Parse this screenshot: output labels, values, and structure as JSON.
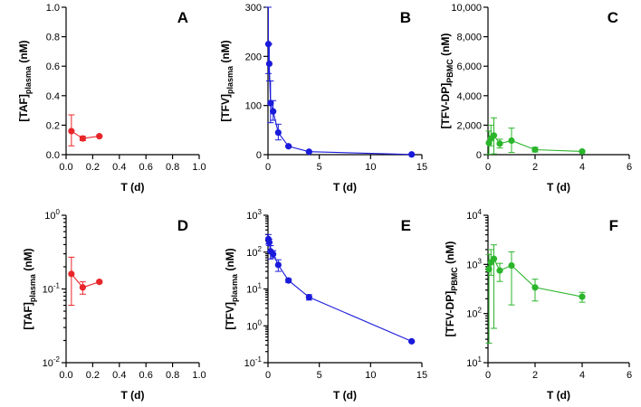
{
  "colors": {
    "red": "#e8262a",
    "blue": "#1a1adb",
    "green": "#2bb52b"
  },
  "chart_data": [
    {
      "panel": "A",
      "type": "line",
      "yscale": "linear",
      "xlabel": "T (d)",
      "ylabel_main": "[TAF]",
      "ylabel_sub": "plasma",
      "ylabel_unit": " (nM)",
      "xlim": [
        0,
        1
      ],
      "ylim": [
        0,
        1
      ],
      "xticks": [
        0,
        0.2,
        0.4,
        0.6,
        0.8,
        1
      ],
      "xtick_labels": [
        "0.0",
        "0.2",
        "0.4",
        "0.6",
        "0.8",
        "1.0"
      ],
      "yticks": [
        0,
        0.2,
        0.4,
        0.6,
        0.8,
        1
      ],
      "ytick_labels": [
        "0.0",
        "0.2",
        "0.4",
        "0.6",
        "0.8",
        "1.0"
      ],
      "color_key": "red",
      "points": [
        {
          "x": 0.04,
          "y": 0.16,
          "lo": 0.06,
          "hi": 0.27
        },
        {
          "x": 0.125,
          "y": 0.11,
          "lo": 0.095,
          "hi": 0.125
        },
        {
          "x": 0.25,
          "y": 0.125,
          "lo": 0.12,
          "hi": 0.13
        }
      ]
    },
    {
      "panel": "B",
      "type": "line",
      "yscale": "linear",
      "xlabel": "T (d)",
      "ylabel_main": "[TFV]",
      "ylabel_sub": "plasma",
      "ylabel_unit": " (nM)",
      "xlim": [
        0,
        15
      ],
      "ylim": [
        0,
        300
      ],
      "xticks": [
        0,
        5,
        10,
        15
      ],
      "xtick_labels": [
        "0",
        "5",
        "10",
        "15"
      ],
      "yticks": [
        0,
        100,
        200,
        300
      ],
      "ytick_labels": [
        "0",
        "100",
        "200",
        "300"
      ],
      "color_key": "blue",
      "points": [
        {
          "x": 0.04,
          "y": 225,
          "lo": 165,
          "hi": 300
        },
        {
          "x": 0.125,
          "y": 185,
          "lo": 150,
          "hi": 225
        },
        {
          "x": 0.25,
          "y": 105,
          "lo": 65,
          "hi": 150
        },
        {
          "x": 0.5,
          "y": 88,
          "lo": 70,
          "hi": 110
        },
        {
          "x": 1,
          "y": 45,
          "lo": 30,
          "hi": 62
        },
        {
          "x": 2,
          "y": 17,
          "lo": 15,
          "hi": 19
        },
        {
          "x": 4,
          "y": 6,
          "lo": 5,
          "hi": 7
        },
        {
          "x": 14,
          "y": 0.4,
          "lo": 0.4,
          "hi": 0.4
        }
      ]
    },
    {
      "panel": "C",
      "type": "line",
      "yscale": "linear",
      "xlabel": "T (d)",
      "ylabel_main": "[TFV-DP]",
      "ylabel_sub": "PBMC",
      "ylabel_unit": " (nM)",
      "xlim": [
        0,
        6
      ],
      "ylim": [
        0,
        10000
      ],
      "xticks": [
        0,
        2,
        4,
        6
      ],
      "xtick_labels": [
        "0",
        "2",
        "4",
        "6"
      ],
      "yticks": [
        0,
        2000,
        4000,
        6000,
        8000,
        10000
      ],
      "ytick_labels": [
        "0",
        "2,000",
        "4,000",
        "6,000",
        "8,000",
        "10,000"
      ],
      "color_key": "green",
      "points": [
        {
          "x": 0.04,
          "y": 800,
          "lo": 25,
          "hi": 1600
        },
        {
          "x": 0.125,
          "y": 1100,
          "lo": 600,
          "hi": 2000
        },
        {
          "x": 0.25,
          "y": 1300,
          "lo": 50,
          "hi": 2500
        },
        {
          "x": 0.5,
          "y": 750,
          "lo": 450,
          "hi": 1050
        },
        {
          "x": 1,
          "y": 950,
          "lo": 150,
          "hi": 1800
        },
        {
          "x": 2,
          "y": 340,
          "lo": 180,
          "hi": 500
        },
        {
          "x": 4,
          "y": 220,
          "lo": 170,
          "hi": 270
        }
      ]
    },
    {
      "panel": "D",
      "type": "line",
      "yscale": "log",
      "xlabel": "T (d)",
      "ylabel_main": "[TAF]",
      "ylabel_sub": "plasma",
      "ylabel_unit": " (nM)",
      "xlim": [
        0,
        1
      ],
      "ylim_exp": [
        -2,
        0
      ],
      "xticks": [
        0,
        0.2,
        0.4,
        0.6,
        0.8,
        1
      ],
      "xtick_labels": [
        "0.0",
        "0.2",
        "0.4",
        "0.6",
        "0.8",
        "1.0"
      ],
      "yticks_exp": [
        -2,
        -1,
        0
      ],
      "ytick_exp_labels": [
        "-2",
        "-1",
        "0"
      ],
      "ytick_base": "10",
      "color_key": "red",
      "points": [
        {
          "x": 0.04,
          "y": 0.16,
          "lo": 0.06,
          "hi": 0.27
        },
        {
          "x": 0.125,
          "y": 0.105,
          "lo": 0.085,
          "hi": 0.125
        },
        {
          "x": 0.25,
          "y": 0.125,
          "lo": 0.12,
          "hi": 0.13
        }
      ]
    },
    {
      "panel": "E",
      "type": "line",
      "yscale": "log",
      "xlabel": "T (d)",
      "ylabel_main": "[TFV]",
      "ylabel_sub": "plasma",
      "ylabel_unit": " (nM)",
      "xlim": [
        0,
        15
      ],
      "ylim_exp": [
        -1,
        3
      ],
      "xticks": [
        0,
        5,
        10,
        15
      ],
      "xtick_labels": [
        "0",
        "5",
        "10",
        "15"
      ],
      "yticks_exp": [
        -1,
        0,
        1,
        2,
        3
      ],
      "ytick_exp_labels": [
        "-1",
        "0",
        "1",
        "2",
        "3"
      ],
      "ytick_base": "10",
      "color_key": "blue",
      "points": [
        {
          "x": 0.04,
          "y": 225,
          "lo": 165,
          "hi": 300
        },
        {
          "x": 0.125,
          "y": 185,
          "lo": 150,
          "hi": 225
        },
        {
          "x": 0.25,
          "y": 105,
          "lo": 65,
          "hi": 150
        },
        {
          "x": 0.5,
          "y": 88,
          "lo": 70,
          "hi": 110
        },
        {
          "x": 1,
          "y": 45,
          "lo": 30,
          "hi": 62
        },
        {
          "x": 2,
          "y": 17,
          "lo": 15,
          "hi": 19
        },
        {
          "x": 4,
          "y": 6,
          "lo": 5,
          "hi": 7
        },
        {
          "x": 14,
          "y": 0.38,
          "lo": 0.36,
          "hi": 0.4
        }
      ]
    },
    {
      "panel": "F",
      "type": "line",
      "yscale": "log",
      "xlabel": "T (d)",
      "ylabel_main": "[TFV-DP]",
      "ylabel_sub": "PBMC",
      "ylabel_unit": " (nM)",
      "xlim": [
        0,
        6
      ],
      "ylim_exp": [
        1,
        4
      ],
      "xticks": [
        0,
        2,
        4,
        6
      ],
      "xtick_labels": [
        "0",
        "2",
        "4",
        "6"
      ],
      "yticks_exp": [
        1,
        2,
        3,
        4
      ],
      "ytick_exp_labels": [
        "1",
        "2",
        "3",
        "4"
      ],
      "ytick_base": "10",
      "color_key": "green",
      "points": [
        {
          "x": 0.04,
          "y": 800,
          "lo": 25,
          "hi": 1600
        },
        {
          "x": 0.125,
          "y": 1100,
          "lo": 600,
          "hi": 2000
        },
        {
          "x": 0.25,
          "y": 1300,
          "lo": 50,
          "hi": 2500
        },
        {
          "x": 0.5,
          "y": 750,
          "lo": 450,
          "hi": 1050
        },
        {
          "x": 1,
          "y": 950,
          "lo": 150,
          "hi": 1800
        },
        {
          "x": 2,
          "y": 340,
          "lo": 180,
          "hi": 500
        },
        {
          "x": 4,
          "y": 220,
          "lo": 170,
          "hi": 270
        }
      ]
    }
  ]
}
